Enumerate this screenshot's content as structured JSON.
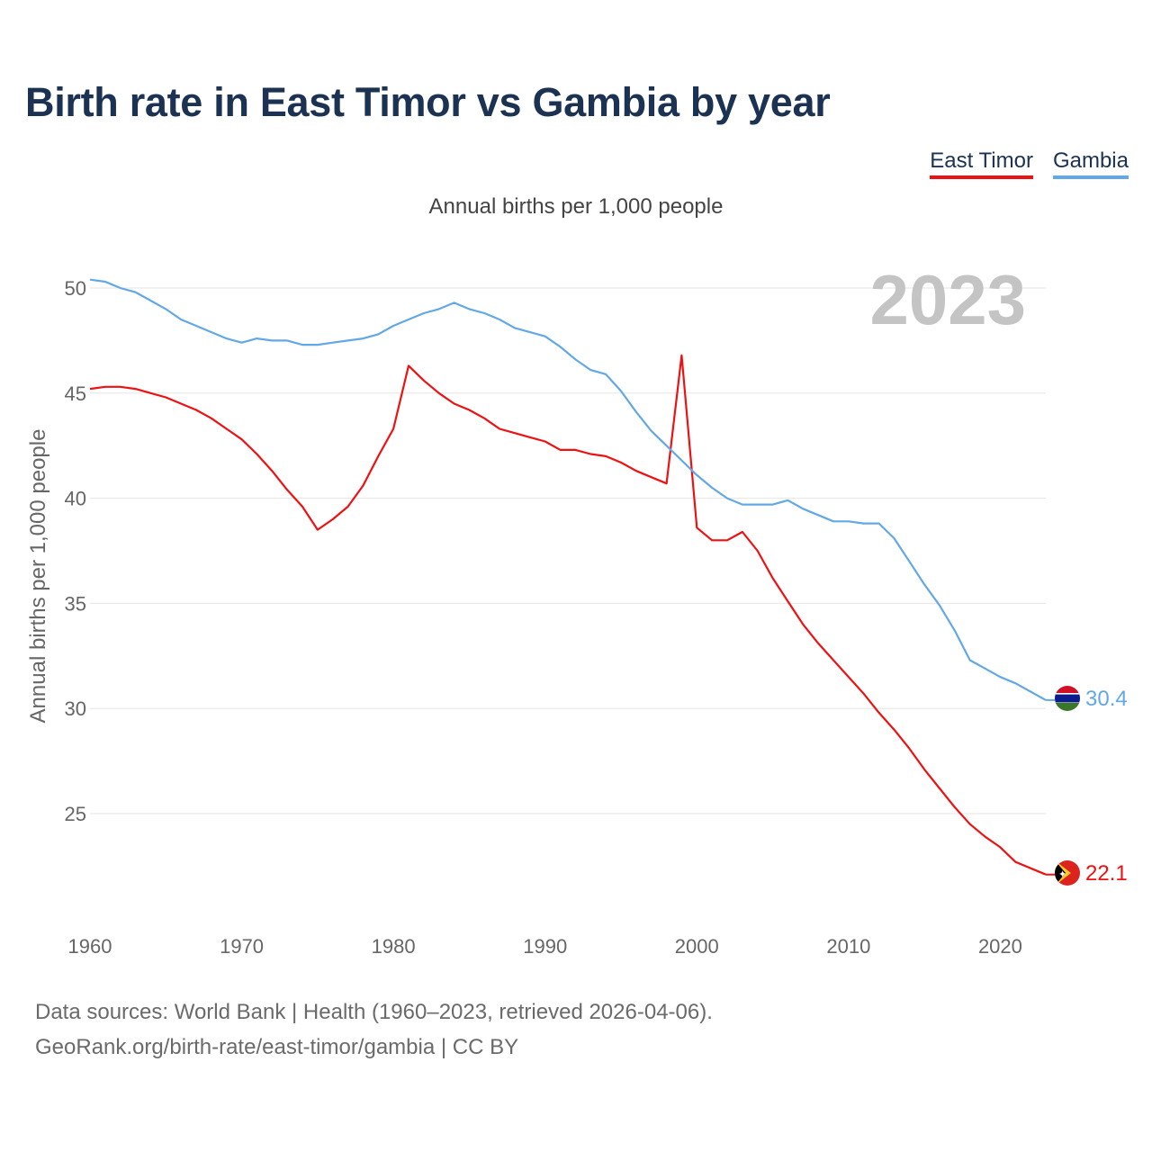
{
  "title": "Birth rate in East Timor vs Gambia by year",
  "subtitle": "Annual births per 1,000 people",
  "footer": {
    "line1": "Data sources: World Bank | Health (1960–2023, retrieved 2026-04-06).",
    "line2": "GeoRank.org/birth-rate/east-timor/gambia | CC BY"
  },
  "colors": {
    "east_timor": "#ee1111",
    "gambia": "#63a8e6",
    "title": "#1b3252"
  },
  "chart_data": {
    "type": "line",
    "title": "Birth rate in East Timor vs Gambia by year",
    "subtitle": "Annual births per 1,000 people",
    "ylabel": "Annual births per 1,000 people",
    "xlabel": "",
    "year_label": "2023",
    "xlim": [
      1960,
      2023
    ],
    "ylim": [
      20.5,
      51
    ],
    "x_ticks": [
      1960,
      1970,
      1980,
      1990,
      2000,
      2010,
      2020
    ],
    "y_ticks": [
      25,
      30,
      35,
      40,
      45,
      50
    ],
    "grid": true,
    "legend_position": "top-right",
    "x": [
      1960,
      1961,
      1962,
      1963,
      1964,
      1965,
      1966,
      1967,
      1968,
      1969,
      1970,
      1971,
      1972,
      1973,
      1974,
      1975,
      1976,
      1977,
      1978,
      1979,
      1980,
      1981,
      1982,
      1983,
      1984,
      1985,
      1986,
      1987,
      1988,
      1989,
      1990,
      1991,
      1992,
      1993,
      1994,
      1995,
      1996,
      1997,
      1998,
      1999,
      2000,
      2001,
      2002,
      2003,
      2004,
      2005,
      2006,
      2007,
      2008,
      2009,
      2010,
      2011,
      2012,
      2013,
      2014,
      2015,
      2016,
      2017,
      2018,
      2019,
      2020,
      2021,
      2022,
      2023
    ],
    "series": [
      {
        "name": "East Timor",
        "color": "#ee1111",
        "end_label": "22.1",
        "values": [
          45.2,
          45.3,
          45.3,
          45.2,
          45.0,
          44.8,
          44.5,
          44.2,
          43.8,
          43.3,
          42.8,
          42.1,
          41.3,
          40.4,
          39.6,
          38.5,
          39.0,
          39.6,
          40.6,
          42.0,
          43.3,
          46.3,
          45.6,
          45.0,
          44.5,
          44.2,
          43.8,
          43.3,
          43.1,
          42.9,
          42.7,
          42.3,
          42.3,
          42.1,
          42.0,
          41.7,
          41.3,
          41.0,
          40.7,
          46.8,
          38.6,
          38.0,
          38.0,
          38.4,
          37.5,
          36.2,
          35.1,
          34.0,
          33.1,
          32.3,
          31.5,
          30.7,
          29.8,
          29.0,
          28.1,
          27.1,
          26.2,
          25.3,
          24.5,
          23.9,
          23.4,
          22.7,
          22.4,
          22.1
        ]
      },
      {
        "name": "Gambia",
        "color": "#63a8e6",
        "end_label": "30.4",
        "values": [
          50.4,
          50.3,
          50.0,
          49.8,
          49.4,
          49.0,
          48.5,
          48.2,
          47.9,
          47.6,
          47.4,
          47.6,
          47.5,
          47.5,
          47.3,
          47.3,
          47.4,
          47.5,
          47.6,
          47.8,
          48.2,
          48.5,
          48.8,
          49.0,
          49.3,
          49.0,
          48.8,
          48.5,
          48.1,
          47.9,
          47.7,
          47.2,
          46.6,
          46.1,
          45.9,
          45.1,
          44.1,
          43.2,
          42.5,
          41.8,
          41.1,
          40.5,
          40.0,
          39.7,
          39.7,
          39.7,
          39.9,
          39.5,
          39.2,
          38.9,
          38.9,
          38.8,
          38.8,
          38.1,
          37.0,
          35.9,
          34.9,
          33.7,
          32.3,
          31.9,
          31.5,
          31.2,
          30.8,
          30.4
        ]
      }
    ]
  }
}
